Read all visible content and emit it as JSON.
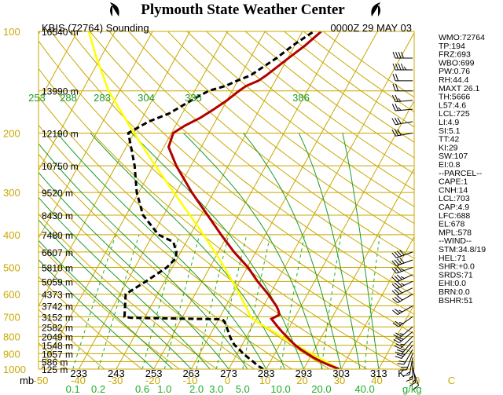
{
  "header": {
    "title": "Plymouth State Weather Center",
    "station_label": "KBIS (72764) Sounding",
    "time_label": "0000Z 29 MAY 03"
  },
  "chart_data": {
    "type": "line",
    "title": "Plymouth State Weather Center",
    "subtitle": "KBIS (72764) Sounding",
    "pressure_ticks": [
      "100",
      "200",
      "300",
      "400",
      "500",
      "600",
      "700",
      "800",
      "900",
      "1000"
    ],
    "pressure_unit_label": "mb",
    "height_labels": [
      {
        "p": 100,
        "label": "16540 m"
      },
      {
        "p": 150,
        "label": "13990 m"
      },
      {
        "p": 200,
        "label": "12190 m"
      },
      {
        "p": 250,
        "label": "10750 m"
      },
      {
        "p": 300,
        "label": "9520 m"
      },
      {
        "p": 350,
        "label": "8430 m"
      },
      {
        "p": 400,
        "label": "7480 m"
      },
      {
        "p": 450,
        "label": "6607 m"
      },
      {
        "p": 500,
        "label": "5810 m"
      },
      {
        "p": 550,
        "label": "5059 m"
      },
      {
        "p": 600,
        "label": "4373 m"
      },
      {
        "p": 650,
        "label": "3742 m"
      },
      {
        "p": 700,
        "label": "3152 m"
      },
      {
        "p": 750,
        "label": "2582 m"
      },
      {
        "p": 800,
        "label": "2049 m"
      },
      {
        "p": 850,
        "label": "1548 m"
      },
      {
        "p": 900,
        "label": "1057 m"
      },
      {
        "p": 950,
        "label": "586 m"
      },
      {
        "p": 1000,
        "label": "125 m"
      }
    ],
    "temp_axis_ticks": [
      "-50",
      "-40",
      "-30",
      "-20",
      "-10",
      "0",
      "10",
      "20",
      "30",
      "40",
      "50",
      "C"
    ],
    "kelvin_ticks": [
      {
        "t": -40,
        "label": "233"
      },
      {
        "t": -30,
        "label": "243"
      },
      {
        "t": -20,
        "label": "253"
      },
      {
        "t": -10,
        "label": "263"
      },
      {
        "t": 0,
        "label": "273"
      },
      {
        "t": 10,
        "label": "283"
      },
      {
        "t": 20,
        "label": "293"
      },
      {
        "t": 30,
        "label": "303"
      },
      {
        "t": 40,
        "label": "313"
      },
      {
        "t": 46,
        "label": "K"
      }
    ],
    "mixing_ratio_ticks": [
      {
        "w": 0.1,
        "label": "0.1"
      },
      {
        "w": 0.2,
        "label": "0.2"
      },
      {
        "w": 0.6,
        "label": "0.6"
      },
      {
        "w": 1.0,
        "label": "1.0"
      },
      {
        "w": 2.0,
        "label": "2.0"
      },
      {
        "w": 3.0,
        "label": "3.0"
      },
      {
        "w": 5.0,
        "label": "5.0"
      },
      {
        "w": 10.0,
        "label": "10.0"
      },
      {
        "w": 20.0,
        "label": "20.0"
      },
      {
        "w": 40.0,
        "label": "40.0"
      }
    ],
    "mixing_ratio_unit": "g/kg",
    "theta_e_labels": [
      "253",
      "288",
      "283",
      "304",
      "335",
      "386"
    ],
    "temperature_profile": [
      [
        1000,
        29.5
      ],
      [
        975,
        26.4
      ],
      [
        950,
        23.5
      ],
      [
        925,
        21
      ],
      [
        900,
        18.7
      ],
      [
        875,
        16.4
      ],
      [
        850,
        14.3
      ],
      [
        825,
        12.4
      ],
      [
        800,
        10.6
      ],
      [
        775,
        8.7
      ],
      [
        750,
        6.9
      ],
      [
        725,
        5.1
      ],
      [
        710,
        4
      ],
      [
        700,
        4.8
      ],
      [
        690,
        5.5
      ],
      [
        670,
        4.6
      ],
      [
        650,
        3.4
      ],
      [
        600,
        -0.5
      ],
      [
        550,
        -5.2
      ],
      [
        500,
        -9.8
      ],
      [
        450,
        -15.8
      ],
      [
        400,
        -21.8
      ],
      [
        350,
        -28.3
      ],
      [
        300,
        -35.8
      ],
      [
        250,
        -43.9
      ],
      [
        220,
        -48.7
      ],
      [
        200,
        -49.5
      ],
      [
        190,
        -47.5
      ],
      [
        180,
        -44.5
      ],
      [
        170,
        -42.2
      ],
      [
        160,
        -40
      ],
      [
        150,
        -38.2
      ],
      [
        145,
        -37
      ],
      [
        140,
        -34.5
      ],
      [
        135,
        -33.2
      ],
      [
        120,
        -29.8
      ],
      [
        110,
        -27.2
      ],
      [
        100,
        -25
      ]
    ],
    "dewpoint_profile": [
      [
        1000,
        9.2
      ],
      [
        975,
        7.1
      ],
      [
        950,
        5.4
      ],
      [
        925,
        3.5
      ],
      [
        900,
        1.6
      ],
      [
        875,
        0
      ],
      [
        850,
        -1.9
      ],
      [
        825,
        -3.3
      ],
      [
        800,
        -4.5
      ],
      [
        775,
        -5.6
      ],
      [
        750,
        -6.8
      ],
      [
        725,
        -8
      ],
      [
        712,
        -9
      ],
      [
        705,
        -33.5
      ],
      [
        700,
        -35.5
      ],
      [
        600,
        -38.5
      ],
      [
        550,
        -35
      ],
      [
        500,
        -31.5
      ],
      [
        470,
        -30.4
      ],
      [
        450,
        -31.2
      ],
      [
        420,
        -33.5
      ],
      [
        400,
        -38.5
      ],
      [
        350,
        -45.5
      ],
      [
        300,
        -50.5
      ],
      [
        250,
        -55
      ],
      [
        200,
        -61.5
      ],
      [
        185,
        -57.8
      ],
      [
        175,
        -53.5
      ],
      [
        160,
        -49.5
      ],
      [
        150,
        -46.3
      ],
      [
        145,
        -42.5
      ],
      [
        140,
        -40.2
      ],
      [
        135,
        -37.4
      ],
      [
        120,
        -33
      ],
      [
        110,
        -30.5
      ],
      [
        100,
        -27
      ]
    ],
    "parcel_profile": [
      [
        1000,
        29.5
      ],
      [
        950,
        24.8
      ],
      [
        900,
        19.8
      ],
      [
        850,
        14.5
      ],
      [
        800,
        9.2
      ],
      [
        750,
        3.6
      ],
      [
        725,
        0.7
      ],
      [
        703,
        -1.6
      ],
      [
        675,
        -3.3
      ],
      [
        650,
        -4.8
      ],
      [
        600,
        -8.2
      ],
      [
        550,
        -11.9
      ],
      [
        500,
        -16.1
      ],
      [
        450,
        -20.9
      ],
      [
        400,
        -26.5
      ],
      [
        350,
        -33
      ],
      [
        300,
        -40.6
      ],
      [
        250,
        -49.5
      ],
      [
        200,
        -60
      ],
      [
        150,
        -73
      ],
      [
        120,
        -81
      ],
      [
        100,
        -87
      ]
    ],
    "wind_profile": [
      {
        "p": 1000,
        "dir": 160,
        "spd": 10
      },
      {
        "p": 975,
        "dir": 170,
        "spd": 15
      },
      {
        "p": 950,
        "dir": 180,
        "spd": 15
      },
      {
        "p": 925,
        "dir": 190,
        "spd": 15
      },
      {
        "p": 900,
        "dir": 200,
        "spd": 20
      },
      {
        "p": 875,
        "dir": 210,
        "spd": 20
      },
      {
        "p": 850,
        "dir": 220,
        "spd": 25
      },
      {
        "p": 825,
        "dir": 220,
        "spd": 25
      },
      {
        "p": 800,
        "dir": 225,
        "spd": 25
      },
      {
        "p": 775,
        "dir": 230,
        "spd": 25
      },
      {
        "p": 750,
        "dir": 230,
        "spd": 25
      },
      {
        "p": 700,
        "dir": 235,
        "spd": 25
      },
      {
        "p": 650,
        "dir": 240,
        "spd": 25
      },
      {
        "p": 600,
        "dir": 240,
        "spd": 30
      },
      {
        "p": 575,
        "dir": 245,
        "spd": 30
      },
      {
        "p": 550,
        "dir": 245,
        "spd": 35
      },
      {
        "p": 525,
        "dir": 245,
        "spd": 35
      },
      {
        "p": 500,
        "dir": 250,
        "spd": 35
      },
      {
        "p": 475,
        "dir": 250,
        "spd": 40
      },
      {
        "p": 450,
        "dir": 250,
        "spd": 40
      },
      {
        "p": 200,
        "dir": 260,
        "spd": 60
      },
      {
        "p": 185,
        "dir": 260,
        "spd": 60
      },
      {
        "p": 170,
        "dir": 265,
        "spd": 55
      },
      {
        "p": 160,
        "dir": 265,
        "spd": 55
      },
      {
        "p": 150,
        "dir": 270,
        "spd": 50
      },
      {
        "p": 140,
        "dir": 270,
        "spd": 50
      },
      {
        "p": 130,
        "dir": 270,
        "spd": 45
      },
      {
        "p": 120,
        "dir": 270,
        "spd": 40
      }
    ],
    "grid": true,
    "legend": "none"
  },
  "indices": [
    "WMO:72764",
    "TP:194",
    "FRZ:693",
    "WBO:699",
    "PW:0.76",
    "RH:44.4",
    "MAXT 26.1",
    "TH:5666",
    "L57:4.6",
    "LCL:725",
    "LI:4.9",
    "SI:5.1",
    "TT:42",
    "KI:29",
    "SW:107",
    "EI:0.8",
    "--PARCEL--",
    "CAPE:1",
    "CNH:14",
    "LCL:703",
    "CAP:4.9",
    "LFC:688",
    "EL:678",
    "MPL:578",
    "--WIND--",
    "STM:34.8/19",
    "HEL:71",
    "SHR:+0.0",
    "SRDS:71",
    "EHI:0.0",
    "BRN:0.0",
    "BSHR:51"
  ],
  "colors": {
    "isobar": "#c8a800",
    "isotherm": "#c8a800",
    "dry_adiabat": "#c8a800",
    "moist_adiabat": "#1d9a2b",
    "mixing_ratio": "#1fae2b",
    "temperature": "#b10000",
    "dewpoint": "#000000",
    "parcel": "#ffff00",
    "kelvin_text": "#000000"
  }
}
